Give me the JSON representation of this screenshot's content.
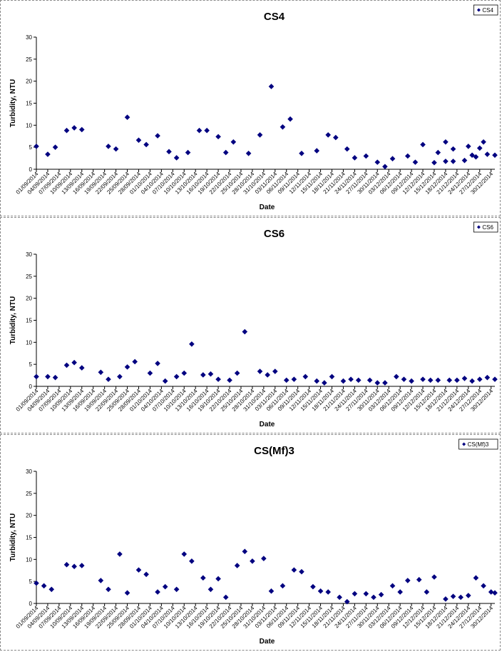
{
  "colors": {
    "marker": "#000080",
    "axis": "#000000",
    "panel_border": "#8a8a8a"
  },
  "chart_data": [
    {
      "type": "scatter",
      "title": "CS4",
      "xlabel": "Date",
      "ylabel": "Turbidity, NTU",
      "ylim": [
        0,
        30
      ],
      "yticks": [
        0,
        5,
        10,
        15,
        20,
        25,
        30
      ],
      "xlim": [
        "01/09/2014",
        "31/12/2014"
      ],
      "xticks": [
        "01/09/2014",
        "04/09/2014",
        "07/09/2014",
        "10/09/2014",
        "13/09/2014",
        "16/09/2014",
        "19/09/2014",
        "22/09/2014",
        "25/09/2014",
        "28/09/2014",
        "01/10/2014",
        "04/10/2014",
        "07/10/2014",
        "10/10/2014",
        "13/10/2014",
        "16/10/2014",
        "19/10/2014",
        "22/10/2014",
        "25/10/2014",
        "28/10/2014",
        "31/10/2014",
        "03/11/2014",
        "06/11/2014",
        "09/11/2014",
        "12/11/2014",
        "15/11/2014",
        "18/11/2014",
        "21/11/2014",
        "24/11/2014",
        "27/11/2014",
        "30/11/2014",
        "03/12/2014",
        "06/12/2014",
        "09/12/2014",
        "12/12/2014",
        "15/12/2014",
        "18/12/2014",
        "21/12/2014",
        "24/12/2014",
        "27/12/2014",
        "30/12/2014"
      ],
      "legend": {
        "position": "top-right"
      },
      "grid": false,
      "series": [
        {
          "name": "CS4",
          "points": [
            {
              "x": "01/09/2014",
              "y": 5.2
            },
            {
              "x": "04/09/2014",
              "y": 3.4
            },
            {
              "x": "06/09/2014",
              "y": 5.0
            },
            {
              "x": "09/09/2014",
              "y": 8.8
            },
            {
              "x": "11/09/2014",
              "y": 9.4
            },
            {
              "x": "13/09/2014",
              "y": 9.0
            },
            {
              "x": "20/09/2014",
              "y": 5.2
            },
            {
              "x": "22/09/2014",
              "y": 4.6
            },
            {
              "x": "25/09/2014",
              "y": 11.8
            },
            {
              "x": "28/09/2014",
              "y": 6.6
            },
            {
              "x": "30/09/2014",
              "y": 5.6
            },
            {
              "x": "03/10/2014",
              "y": 7.6
            },
            {
              "x": "06/10/2014",
              "y": 4.0
            },
            {
              "x": "08/10/2014",
              "y": 2.6
            },
            {
              "x": "11/10/2014",
              "y": 3.8
            },
            {
              "x": "14/10/2014",
              "y": 8.8
            },
            {
              "x": "16/10/2014",
              "y": 8.8
            },
            {
              "x": "19/10/2014",
              "y": 7.4
            },
            {
              "x": "21/10/2014",
              "y": 3.8
            },
            {
              "x": "23/10/2014",
              "y": 6.2
            },
            {
              "x": "27/10/2014",
              "y": 3.6
            },
            {
              "x": "30/10/2014",
              "y": 7.8
            },
            {
              "x": "02/11/2014",
              "y": 18.8
            },
            {
              "x": "05/11/2014",
              "y": 9.6
            },
            {
              "x": "07/11/2014",
              "y": 11.4
            },
            {
              "x": "10/11/2014",
              "y": 3.6
            },
            {
              "x": "14/11/2014",
              "y": 4.2
            },
            {
              "x": "17/11/2014",
              "y": 7.8
            },
            {
              "x": "19/11/2014",
              "y": 7.2
            },
            {
              "x": "22/11/2014",
              "y": 4.6
            },
            {
              "x": "24/11/2014",
              "y": 2.6
            },
            {
              "x": "27/11/2014",
              "y": 3.0
            },
            {
              "x": "30/11/2014",
              "y": 1.6
            },
            {
              "x": "02/12/2014",
              "y": 0.6
            },
            {
              "x": "04/12/2014",
              "y": 2.4
            },
            {
              "x": "08/12/2014",
              "y": 3.0
            },
            {
              "x": "10/12/2014",
              "y": 1.6
            },
            {
              "x": "12/12/2014",
              "y": 5.6
            },
            {
              "x": "16/12/2014",
              "y": 3.8
            },
            {
              "x": "18/12/2014",
              "y": 6.2
            },
            {
              "x": "20/12/2014",
              "y": 4.6
            },
            {
              "x": "24/12/2014",
              "y": 5.2
            },
            {
              "x": "26/12/2014",
              "y": 2.8
            },
            {
              "x": "28/12/2014",
              "y": 6.2
            },
            {
              "x": "15/12/2014",
              "y": 1.5
            },
            {
              "x": "18/12/2014",
              "y": 1.8
            },
            {
              "x": "20/12/2014",
              "y": 1.8
            },
            {
              "x": "23/12/2014",
              "y": 2.0
            },
            {
              "x": "25/12/2014",
              "y": 3.2
            },
            {
              "x": "27/12/2014",
              "y": 4.8
            },
            {
              "x": "29/12/2014",
              "y": 3.4
            },
            {
              "x": "31/12/2014",
              "y": 3.2
            }
          ]
        }
      ]
    },
    {
      "type": "scatter",
      "title": "CS6",
      "xlabel": "Date",
      "ylabel": "Turbidity, NTU",
      "ylim": [
        0,
        30
      ],
      "yticks": [
        0,
        5,
        10,
        15,
        20,
        25,
        30
      ],
      "xlim": [
        "01/09/2014",
        "31/12/2014"
      ],
      "xticks": [
        "01/09/2014",
        "04/09/2014",
        "07/09/2014",
        "10/09/2014",
        "13/09/2014",
        "16/09/2014",
        "19/09/2014",
        "22/09/2014",
        "25/09/2014",
        "28/09/2014",
        "01/10/2014",
        "04/10/2014",
        "07/10/2014",
        "10/10/2014",
        "13/10/2014",
        "16/10/2014",
        "19/10/2014",
        "22/10/2014",
        "25/10/2014",
        "28/10/2014",
        "31/10/2014",
        "03/11/2014",
        "06/11/2014",
        "09/11/2014",
        "12/11/2014",
        "15/11/2014",
        "18/11/2014",
        "21/11/2014",
        "24/11/2014",
        "27/11/2014",
        "30/11/2014",
        "03/12/2014",
        "06/12/2014",
        "09/12/2014",
        "12/12/2014",
        "15/12/2014",
        "18/12/2014",
        "21/12/2014",
        "24/12/2014",
        "27/12/2014",
        "30/12/2014"
      ],
      "legend": {
        "position": "top-right"
      },
      "grid": false,
      "series": [
        {
          "name": "CS6",
          "points": [
            {
              "x": "01/09/2014",
              "y": 2.2
            },
            {
              "x": "04/09/2014",
              "y": 2.2
            },
            {
              "x": "06/09/2014",
              "y": 2.0
            },
            {
              "x": "09/09/2014",
              "y": 4.8
            },
            {
              "x": "11/09/2014",
              "y": 5.4
            },
            {
              "x": "13/09/2014",
              "y": 4.2
            },
            {
              "x": "18/09/2014",
              "y": 3.2
            },
            {
              "x": "20/09/2014",
              "y": 1.6
            },
            {
              "x": "23/09/2014",
              "y": 2.2
            },
            {
              "x": "25/09/2014",
              "y": 4.4
            },
            {
              "x": "27/09/2014",
              "y": 5.6
            },
            {
              "x": "01/10/2014",
              "y": 3.0
            },
            {
              "x": "03/10/2014",
              "y": 5.2
            },
            {
              "x": "05/10/2014",
              "y": 1.2
            },
            {
              "x": "08/10/2014",
              "y": 2.2
            },
            {
              "x": "10/10/2014",
              "y": 3.0
            },
            {
              "x": "12/10/2014",
              "y": 9.6
            },
            {
              "x": "15/10/2014",
              "y": 2.6
            },
            {
              "x": "17/10/2014",
              "y": 2.8
            },
            {
              "x": "19/10/2014",
              "y": 1.6
            },
            {
              "x": "22/10/2014",
              "y": 1.4
            },
            {
              "x": "24/10/2014",
              "y": 3.0
            },
            {
              "x": "26/10/2014",
              "y": 12.4
            },
            {
              "x": "30/10/2014",
              "y": 3.4
            },
            {
              "x": "01/11/2014",
              "y": 2.6
            },
            {
              "x": "03/11/2014",
              "y": 3.4
            },
            {
              "x": "06/11/2014",
              "y": 1.4
            },
            {
              "x": "08/11/2014",
              "y": 1.6
            },
            {
              "x": "11/11/2014",
              "y": 2.2
            },
            {
              "x": "14/11/2014",
              "y": 1.2
            },
            {
              "x": "16/11/2014",
              "y": 0.8
            },
            {
              "x": "18/11/2014",
              "y": 2.2
            },
            {
              "x": "21/11/2014",
              "y": 1.2
            },
            {
              "x": "23/11/2014",
              "y": 1.6
            },
            {
              "x": "25/11/2014",
              "y": 1.4
            },
            {
              "x": "28/11/2014",
              "y": 1.4
            },
            {
              "x": "30/11/2014",
              "y": 0.8
            },
            {
              "x": "02/12/2014",
              "y": 0.8
            },
            {
              "x": "05/12/2014",
              "y": 2.2
            },
            {
              "x": "07/12/2014",
              "y": 1.6
            },
            {
              "x": "09/12/2014",
              "y": 1.2
            },
            {
              "x": "12/12/2014",
              "y": 1.6
            },
            {
              "x": "14/12/2014",
              "y": 1.4
            },
            {
              "x": "16/12/2014",
              "y": 1.4
            },
            {
              "x": "19/12/2014",
              "y": 1.4
            },
            {
              "x": "21/12/2014",
              "y": 1.4
            },
            {
              "x": "23/12/2014",
              "y": 1.8
            },
            {
              "x": "25/12/2014",
              "y": 1.2
            },
            {
              "x": "27/12/2014",
              "y": 1.6
            },
            {
              "x": "29/12/2014",
              "y": 2.0
            },
            {
              "x": "31/12/2014",
              "y": 1.6
            }
          ]
        }
      ]
    },
    {
      "type": "scatter",
      "title": "CS(Mf)3",
      "xlabel": "Date",
      "ylabel": "Turbidity, NTU",
      "ylim": [
        0,
        30
      ],
      "yticks": [
        0,
        5,
        10,
        15,
        20,
        25,
        30
      ],
      "xlim": [
        "01/09/2014",
        "31/12/2014"
      ],
      "xticks": [
        "01/09/2014",
        "04/09/2014",
        "07/09/2014",
        "10/09/2014",
        "13/09/2014",
        "16/09/2014",
        "19/09/2014",
        "22/09/2014",
        "25/09/2014",
        "28/09/2014",
        "01/10/2014",
        "04/10/2014",
        "07/10/2014",
        "10/10/2014",
        "13/10/2014",
        "16/10/2014",
        "19/10/2014",
        "22/10/2014",
        "25/10/2014",
        "28/10/2014",
        "31/10/2014",
        "03/11/2014",
        "06/11/2014",
        "09/11/2014",
        "12/11/2014",
        "15/11/2014",
        "18/11/2014",
        "21/11/2014",
        "24/11/2014",
        "27/11/2014",
        "30/11/2014",
        "03/12/2014",
        "06/12/2014",
        "09/12/2014",
        "12/12/2014",
        "15/12/2014",
        "18/12/2014",
        "21/12/2014",
        "24/12/2014",
        "27/12/2014",
        "30/12/2014"
      ],
      "legend": {
        "position": "top-right"
      },
      "grid": false,
      "series": [
        {
          "name": "CS(Mf)3",
          "points": [
            {
              "x": "01/09/2014",
              "y": 4.6
            },
            {
              "x": "03/09/2014",
              "y": 4.0
            },
            {
              "x": "05/09/2014",
              "y": 3.2
            },
            {
              "x": "09/09/2014",
              "y": 8.8
            },
            {
              "x": "11/09/2014",
              "y": 8.4
            },
            {
              "x": "13/09/2014",
              "y": 8.6
            },
            {
              "x": "18/09/2014",
              "y": 5.2
            },
            {
              "x": "20/09/2014",
              "y": 3.2
            },
            {
              "x": "23/09/2014",
              "y": 11.2
            },
            {
              "x": "25/09/2014",
              "y": 2.4
            },
            {
              "x": "28/09/2014",
              "y": 7.6
            },
            {
              "x": "30/09/2014",
              "y": 6.6
            },
            {
              "x": "03/10/2014",
              "y": 2.6
            },
            {
              "x": "05/10/2014",
              "y": 3.8
            },
            {
              "x": "08/10/2014",
              "y": 3.2
            },
            {
              "x": "10/10/2014",
              "y": 11.2
            },
            {
              "x": "12/10/2014",
              "y": 9.6
            },
            {
              "x": "15/10/2014",
              "y": 5.8
            },
            {
              "x": "17/10/2014",
              "y": 3.2
            },
            {
              "x": "19/10/2014",
              "y": 5.6
            },
            {
              "x": "21/10/2014",
              "y": 1.4
            },
            {
              "x": "24/10/2014",
              "y": 8.6
            },
            {
              "x": "26/10/2014",
              "y": 11.8
            },
            {
              "x": "28/10/2014",
              "y": 9.6
            },
            {
              "x": "31/10/2014",
              "y": 10.2
            },
            {
              "x": "02/11/2014",
              "y": 2.8
            },
            {
              "x": "05/11/2014",
              "y": 4.0
            },
            {
              "x": "08/11/2014",
              "y": 7.6
            },
            {
              "x": "10/11/2014",
              "y": 7.2
            },
            {
              "x": "13/11/2014",
              "y": 3.8
            },
            {
              "x": "15/11/2014",
              "y": 2.8
            },
            {
              "x": "17/11/2014",
              "y": 2.6
            },
            {
              "x": "20/11/2014",
              "y": 1.4
            },
            {
              "x": "22/11/2014",
              "y": 0.4
            },
            {
              "x": "24/11/2014",
              "y": 2.2
            },
            {
              "x": "27/11/2014",
              "y": 2.2
            },
            {
              "x": "29/11/2014",
              "y": 1.4
            },
            {
              "x": "01/12/2014",
              "y": 2.0
            },
            {
              "x": "04/12/2014",
              "y": 4.0
            },
            {
              "x": "06/12/2014",
              "y": 2.6
            },
            {
              "x": "08/12/2014",
              "y": 5.2
            },
            {
              "x": "11/12/2014",
              "y": 5.4
            },
            {
              "x": "13/12/2014",
              "y": 2.6
            },
            {
              "x": "15/12/2014",
              "y": 6.0
            },
            {
              "x": "18/12/2014",
              "y": 1.0
            },
            {
              "x": "20/12/2014",
              "y": 1.6
            },
            {
              "x": "22/12/2014",
              "y": 1.4
            },
            {
              "x": "24/12/2014",
              "y": 1.8
            },
            {
              "x": "26/12/2014",
              "y": 5.8
            },
            {
              "x": "28/12/2014",
              "y": 4.0
            },
            {
              "x": "30/12/2014",
              "y": 2.6
            },
            {
              "x": "31/12/2014",
              "y": 2.4
            }
          ]
        }
      ]
    }
  ]
}
